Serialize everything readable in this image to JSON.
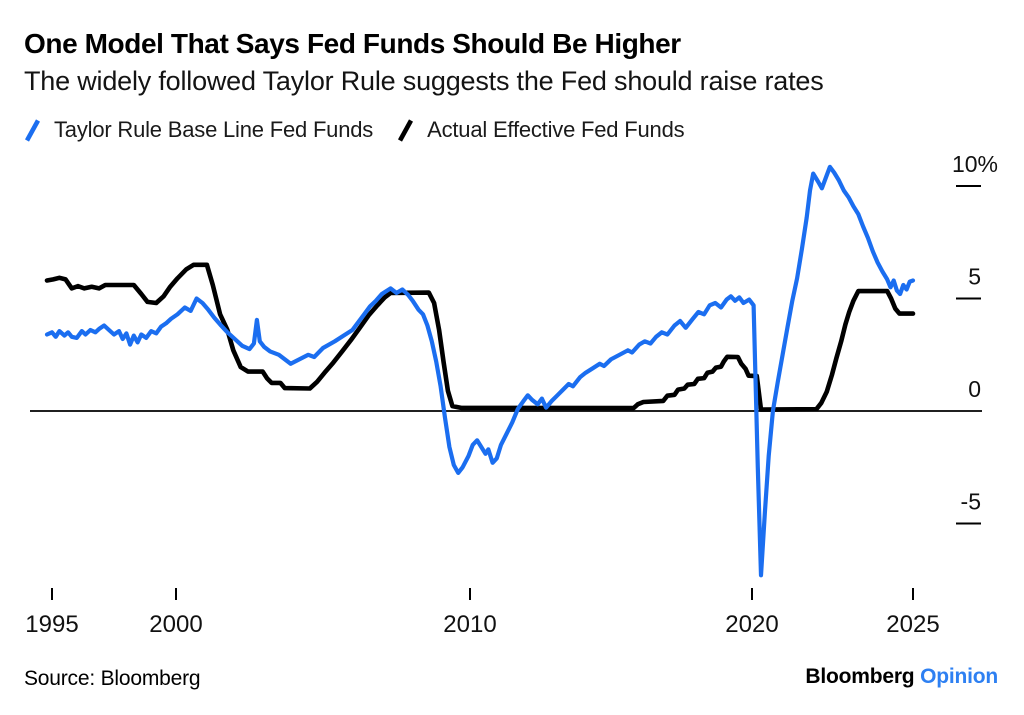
{
  "chart_data": {
    "type": "line",
    "title": "One Model That Says Fed Funds Should Be Higher",
    "subtitle": "The widely followed Taylor Rule suggests the Fed should raise rates",
    "unit": "%",
    "legend_position": "top-left",
    "grid": false,
    "xlim": [
      1994.8,
      2025.2
    ],
    "ylim": [
      -8.5,
      11.5
    ],
    "x_axis": {
      "ticks": [
        {
          "label": "1995",
          "year": 1995
        },
        {
          "label": "2000",
          "year": 2000
        },
        {
          "label": "2010",
          "year": 2010
        },
        {
          "label": "2020",
          "year": 2020
        },
        {
          "label": "2025",
          "year": 2025
        }
      ]
    },
    "y_axis": {
      "side": "right",
      "zero_baseline": true,
      "ticks": [
        {
          "label": "10%",
          "value": 10
        },
        {
          "label": "5",
          "value": 5
        },
        {
          "label": "0",
          "value": 0
        },
        {
          "label": "-5",
          "value": -5
        }
      ]
    },
    "series": [
      {
        "name": "Taylor Rule Base Line Fed Funds",
        "color": "#1b6ef0",
        "points": [
          [
            1994.8,
            3.4
          ],
          [
            1995.0,
            3.5
          ],
          [
            1995.15,
            3.3
          ],
          [
            1995.3,
            3.55
          ],
          [
            1995.5,
            3.35
          ],
          [
            1995.65,
            3.5
          ],
          [
            1995.8,
            3.3
          ],
          [
            1996.0,
            3.25
          ],
          [
            1996.2,
            3.55
          ],
          [
            1996.35,
            3.4
          ],
          [
            1996.55,
            3.6
          ],
          [
            1996.75,
            3.5
          ],
          [
            1996.9,
            3.65
          ],
          [
            1997.1,
            3.8
          ],
          [
            1997.3,
            3.6
          ],
          [
            1997.5,
            3.4
          ],
          [
            1997.7,
            3.55
          ],
          [
            1997.85,
            3.2
          ],
          [
            1998.0,
            3.45
          ],
          [
            1998.15,
            2.95
          ],
          [
            1998.3,
            3.35
          ],
          [
            1998.45,
            3.05
          ],
          [
            1998.6,
            3.4
          ],
          [
            1998.8,
            3.25
          ],
          [
            1999.0,
            3.55
          ],
          [
            1999.2,
            3.45
          ],
          [
            1999.4,
            3.75
          ],
          [
            1999.6,
            3.9
          ],
          [
            1999.8,
            4.1
          ],
          [
            2000.05,
            4.3
          ],
          [
            2000.3,
            4.6
          ],
          [
            2000.5,
            4.45
          ],
          [
            2000.7,
            5.0
          ],
          [
            2000.9,
            4.8
          ],
          [
            2001.1,
            4.5
          ],
          [
            2001.3,
            4.15
          ],
          [
            2001.5,
            3.85
          ],
          [
            2001.75,
            3.5
          ],
          [
            2002.0,
            3.2
          ],
          [
            2002.25,
            2.9
          ],
          [
            2002.5,
            2.75
          ],
          [
            2002.65,
            3.0
          ],
          [
            2002.75,
            4.05
          ],
          [
            2002.85,
            3.1
          ],
          [
            2003.0,
            2.85
          ],
          [
            2003.2,
            2.65
          ],
          [
            2003.5,
            2.5
          ],
          [
            2003.7,
            2.3
          ],
          [
            2003.9,
            2.1
          ],
          [
            2004.2,
            2.3
          ],
          [
            2004.5,
            2.5
          ],
          [
            2004.7,
            2.4
          ],
          [
            2005.0,
            2.8
          ],
          [
            2005.4,
            3.1
          ],
          [
            2005.7,
            3.35
          ],
          [
            2006.0,
            3.6
          ],
          [
            2006.2,
            3.95
          ],
          [
            2006.4,
            4.3
          ],
          [
            2006.6,
            4.65
          ],
          [
            2006.8,
            4.9
          ],
          [
            2007.0,
            5.2
          ],
          [
            2007.3,
            5.45
          ],
          [
            2007.5,
            5.25
          ],
          [
            2007.7,
            5.4
          ],
          [
            2007.9,
            5.15
          ],
          [
            2008.05,
            4.9
          ],
          [
            2008.25,
            4.5
          ],
          [
            2008.4,
            4.3
          ],
          [
            2008.55,
            3.8
          ],
          [
            2008.7,
            3.1
          ],
          [
            2008.85,
            2.2
          ],
          [
            2009.0,
            1.1
          ],
          [
            2009.15,
            -0.3
          ],
          [
            2009.3,
            -1.6
          ],
          [
            2009.45,
            -2.4
          ],
          [
            2009.6,
            -2.75
          ],
          [
            2009.75,
            -2.5
          ],
          [
            2009.95,
            -2.0
          ],
          [
            2010.1,
            -1.5
          ],
          [
            2010.25,
            -1.3
          ],
          [
            2010.4,
            -1.6
          ],
          [
            2010.55,
            -1.9
          ],
          [
            2010.65,
            -1.7
          ],
          [
            2010.8,
            -2.3
          ],
          [
            2010.95,
            -2.1
          ],
          [
            2011.1,
            -1.5
          ],
          [
            2011.3,
            -1.0
          ],
          [
            2011.5,
            -0.5
          ],
          [
            2011.7,
            0.1
          ],
          [
            2011.9,
            0.45
          ],
          [
            2012.05,
            0.7
          ],
          [
            2012.2,
            0.5
          ],
          [
            2012.4,
            0.3
          ],
          [
            2012.55,
            0.55
          ],
          [
            2012.7,
            0.15
          ],
          [
            2012.9,
            0.45
          ],
          [
            2013.1,
            0.7
          ],
          [
            2013.3,
            0.95
          ],
          [
            2013.5,
            1.2
          ],
          [
            2013.65,
            1.1
          ],
          [
            2013.9,
            1.5
          ],
          [
            2014.1,
            1.7
          ],
          [
            2014.35,
            1.9
          ],
          [
            2014.6,
            2.1
          ],
          [
            2014.75,
            2.0
          ],
          [
            2015.0,
            2.3
          ],
          [
            2015.3,
            2.5
          ],
          [
            2015.6,
            2.7
          ],
          [
            2015.75,
            2.6
          ],
          [
            2016.0,
            2.95
          ],
          [
            2016.2,
            3.1
          ],
          [
            2016.4,
            3.0
          ],
          [
            2016.6,
            3.3
          ],
          [
            2016.8,
            3.5
          ],
          [
            2017.0,
            3.4
          ],
          [
            2017.25,
            3.8
          ],
          [
            2017.45,
            4.0
          ],
          [
            2017.65,
            3.7
          ],
          [
            2017.9,
            4.1
          ],
          [
            2018.1,
            4.4
          ],
          [
            2018.3,
            4.3
          ],
          [
            2018.5,
            4.7
          ],
          [
            2018.7,
            4.8
          ],
          [
            2018.9,
            4.6
          ],
          [
            2019.1,
            4.95
          ],
          [
            2019.25,
            5.1
          ],
          [
            2019.4,
            4.9
          ],
          [
            2019.55,
            5.05
          ],
          [
            2019.7,
            4.8
          ],
          [
            2019.9,
            4.95
          ],
          [
            2020.05,
            4.7
          ],
          [
            2020.18,
            -2.5
          ],
          [
            2020.28,
            -7.3
          ],
          [
            2020.4,
            -4.5
          ],
          [
            2020.52,
            -2.0
          ],
          [
            2020.65,
            0.0
          ],
          [
            2020.8,
            1.3
          ],
          [
            2020.95,
            2.5
          ],
          [
            2021.1,
            3.7
          ],
          [
            2021.25,
            4.9
          ],
          [
            2021.4,
            5.9
          ],
          [
            2021.55,
            7.2
          ],
          [
            2021.7,
            8.6
          ],
          [
            2021.8,
            9.8
          ],
          [
            2021.9,
            10.55
          ],
          [
            2022.05,
            10.2
          ],
          [
            2022.17,
            9.9
          ],
          [
            2022.3,
            10.4
          ],
          [
            2022.42,
            10.85
          ],
          [
            2022.55,
            10.6
          ],
          [
            2022.7,
            10.25
          ],
          [
            2022.85,
            9.8
          ],
          [
            2023.0,
            9.5
          ],
          [
            2023.15,
            9.1
          ],
          [
            2023.3,
            8.75
          ],
          [
            2023.45,
            8.2
          ],
          [
            2023.6,
            7.7
          ],
          [
            2023.75,
            7.1
          ],
          [
            2023.9,
            6.6
          ],
          [
            2024.05,
            6.2
          ],
          [
            2024.2,
            5.85
          ],
          [
            2024.3,
            5.5
          ],
          [
            2024.4,
            5.8
          ],
          [
            2024.5,
            5.35
          ],
          [
            2024.6,
            5.2
          ],
          [
            2024.7,
            5.6
          ],
          [
            2024.8,
            5.4
          ],
          [
            2024.9,
            5.75
          ],
          [
            2025.0,
            5.8
          ]
        ]
      },
      {
        "name": "Actual Effective Fed Funds",
        "color": "#000000",
        "points": [
          [
            1994.8,
            5.8
          ],
          [
            1995.05,
            5.85
          ],
          [
            1995.3,
            5.92
          ],
          [
            1995.55,
            5.85
          ],
          [
            1995.8,
            5.45
          ],
          [
            1996.05,
            5.55
          ],
          [
            1996.3,
            5.45
          ],
          [
            1996.6,
            5.52
          ],
          [
            1996.9,
            5.45
          ],
          [
            1997.15,
            5.6
          ],
          [
            1998.3,
            5.6
          ],
          [
            1998.6,
            5.2
          ],
          [
            1998.85,
            4.85
          ],
          [
            1999.2,
            4.8
          ],
          [
            1999.5,
            5.1
          ],
          [
            1999.75,
            5.5
          ],
          [
            2000.05,
            5.9
          ],
          [
            2000.35,
            6.3
          ],
          [
            2000.6,
            6.5
          ],
          [
            2001.05,
            6.5
          ],
          [
            2001.25,
            5.6
          ],
          [
            2001.5,
            4.3
          ],
          [
            2001.75,
            3.6
          ],
          [
            2001.95,
            2.7
          ],
          [
            2002.2,
            1.95
          ],
          [
            2002.45,
            1.75
          ],
          [
            2002.95,
            1.75
          ],
          [
            2003.1,
            1.45
          ],
          [
            2003.25,
            1.25
          ],
          [
            2003.55,
            1.25
          ],
          [
            2003.7,
            1.02
          ],
          [
            2004.55,
            1.0
          ],
          [
            2004.8,
            1.3
          ],
          [
            2005.05,
            1.7
          ],
          [
            2005.35,
            2.15
          ],
          [
            2005.65,
            2.65
          ],
          [
            2005.95,
            3.15
          ],
          [
            2006.25,
            3.7
          ],
          [
            2006.55,
            4.25
          ],
          [
            2006.85,
            4.7
          ],
          [
            2007.1,
            5.05
          ],
          [
            2007.3,
            5.25
          ],
          [
            2008.6,
            5.26
          ],
          [
            2008.78,
            4.8
          ],
          [
            2008.95,
            3.6
          ],
          [
            2009.1,
            2.2
          ],
          [
            2009.25,
            0.9
          ],
          [
            2009.4,
            0.22
          ],
          [
            2009.7,
            0.14
          ],
          [
            2015.8,
            0.13
          ],
          [
            2015.95,
            0.3
          ],
          [
            2016.15,
            0.4
          ],
          [
            2016.85,
            0.45
          ],
          [
            2017.0,
            0.68
          ],
          [
            2017.25,
            0.72
          ],
          [
            2017.38,
            0.95
          ],
          [
            2017.6,
            1.0
          ],
          [
            2017.72,
            1.17
          ],
          [
            2017.95,
            1.2
          ],
          [
            2018.08,
            1.43
          ],
          [
            2018.3,
            1.46
          ],
          [
            2018.42,
            1.7
          ],
          [
            2018.6,
            1.75
          ],
          [
            2018.72,
            1.93
          ],
          [
            2018.9,
            1.97
          ],
          [
            2019.0,
            2.2
          ],
          [
            2019.12,
            2.41
          ],
          [
            2019.5,
            2.4
          ],
          [
            2019.62,
            2.1
          ],
          [
            2019.77,
            1.88
          ],
          [
            2019.88,
            1.57
          ],
          [
            2020.15,
            1.55
          ],
          [
            2020.28,
            0.06
          ],
          [
            2022.0,
            0.08
          ],
          [
            2022.15,
            0.35
          ],
          [
            2022.32,
            0.85
          ],
          [
            2022.48,
            1.6
          ],
          [
            2022.62,
            2.35
          ],
          [
            2022.77,
            3.1
          ],
          [
            2022.9,
            3.85
          ],
          [
            2023.02,
            4.4
          ],
          [
            2023.15,
            4.9
          ],
          [
            2023.3,
            5.33
          ],
          [
            2024.2,
            5.33
          ],
          [
            2024.32,
            5.0
          ],
          [
            2024.45,
            4.55
          ],
          [
            2024.58,
            4.33
          ],
          [
            2025.0,
            4.33
          ]
        ]
      }
    ]
  },
  "footer": {
    "source": "Source: Bloomberg",
    "logo": {
      "brand": "Bloomberg",
      "sub": "Opinion",
      "sub_color": "#2e80f2"
    }
  }
}
